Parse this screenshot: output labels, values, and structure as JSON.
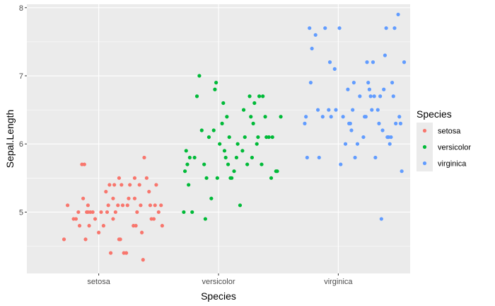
{
  "chart_data": {
    "type": "scatter",
    "xlabel": "Species",
    "ylabel": "Sepal.Length",
    "categories": [
      "setosa",
      "versicolor",
      "virginica"
    ],
    "ylim": [
      4.1,
      8.05
    ],
    "yticks": [
      5,
      6,
      7,
      8
    ],
    "grid": true,
    "legend": {
      "title": "Species",
      "position": "right"
    },
    "colors": {
      "setosa": "#F8766D",
      "versicolor": "#00BA38",
      "virginica": "#619CFF"
    },
    "series": [
      {
        "name": "setosa",
        "points": [
          [
            0.71,
            4.6
          ],
          [
            0.74,
            5.1
          ],
          [
            0.79,
            4.9
          ],
          [
            0.81,
            4.9
          ],
          [
            0.83,
            5.0
          ],
          [
            0.84,
            4.8
          ],
          [
            0.86,
            5.7
          ],
          [
            0.87,
            5.2
          ],
          [
            0.88,
            5.7
          ],
          [
            0.89,
            4.6
          ],
          [
            0.9,
            5.0
          ],
          [
            0.91,
            5.0
          ],
          [
            0.91,
            5.1
          ],
          [
            0.92,
            4.8
          ],
          [
            0.93,
            5.0
          ],
          [
            0.95,
            5.0
          ],
          [
            0.97,
            4.9
          ],
          [
            1.0,
            4.7
          ],
          [
            1.02,
            5.0
          ],
          [
            1.04,
            4.8
          ],
          [
            1.06,
            5.3
          ],
          [
            1.07,
            5.0
          ],
          [
            1.08,
            5.1
          ],
          [
            1.09,
            5.4
          ],
          [
            1.1,
            4.4
          ],
          [
            1.12,
            4.9
          ],
          [
            1.12,
            5.2
          ],
          [
            1.13,
            5.4
          ],
          [
            1.14,
            5.0
          ],
          [
            1.16,
            5.1
          ],
          [
            1.17,
            5.5
          ],
          [
            1.17,
            4.6
          ],
          [
            1.18,
            4.6
          ],
          [
            1.19,
            5.4
          ],
          [
            1.2,
            5.1
          ],
          [
            1.21,
            4.4
          ],
          [
            1.23,
            4.4
          ],
          [
            1.24,
            5.1
          ],
          [
            1.25,
            5.2
          ],
          [
            1.26,
            5.4
          ],
          [
            1.29,
            4.8
          ],
          [
            1.3,
            5.5
          ],
          [
            1.3,
            5.2
          ],
          [
            1.31,
            4.8
          ],
          [
            1.32,
            5.0
          ],
          [
            1.34,
            5.4
          ],
          [
            1.35,
            5.1
          ],
          [
            1.36,
            4.7
          ],
          [
            1.37,
            4.3
          ],
          [
            1.38,
            5.8
          ],
          [
            1.4,
            5.5
          ],
          [
            1.42,
            5.3
          ],
          [
            1.43,
            5.1
          ],
          [
            1.44,
            4.9
          ],
          [
            1.46,
            4.9
          ],
          [
            1.47,
            5.1
          ],
          [
            1.48,
            5.4
          ],
          [
            1.5,
            5.0
          ],
          [
            1.52,
            5.1
          ],
          [
            1.53,
            4.8
          ]
        ]
      },
      {
        "name": "versicolor",
        "points": [
          [
            1.71,
            5.0
          ],
          [
            1.72,
            5.6
          ],
          [
            1.73,
            5.9
          ],
          [
            1.74,
            5.7
          ],
          [
            1.75,
            5.4
          ],
          [
            1.76,
            5.8
          ],
          [
            1.78,
            5.0
          ],
          [
            1.8,
            5.8
          ],
          [
            1.82,
            6.7
          ],
          [
            1.84,
            7.0
          ],
          [
            1.86,
            6.2
          ],
          [
            1.88,
            5.7
          ],
          [
            1.89,
            4.9
          ],
          [
            1.9,
            5.5
          ],
          [
            1.92,
            6.1
          ],
          [
            1.94,
            5.2
          ],
          [
            1.96,
            6.2
          ],
          [
            1.97,
            6.8
          ],
          [
            1.98,
            6.9
          ],
          [
            1.99,
            5.5
          ],
          [
            2.01,
            6.0
          ],
          [
            2.03,
            6.3
          ],
          [
            2.04,
            6.6
          ],
          [
            2.05,
            5.9
          ],
          [
            2.06,
            5.8
          ],
          [
            2.07,
            6.4
          ],
          [
            2.08,
            5.7
          ],
          [
            2.09,
            6.1
          ],
          [
            2.1,
            5.5
          ],
          [
            2.11,
            5.5
          ],
          [
            2.13,
            5.6
          ],
          [
            2.15,
            5.8
          ],
          [
            2.16,
            6.0
          ],
          [
            2.18,
            5.1
          ],
          [
            2.2,
            5.9
          ],
          [
            2.21,
            6.5
          ],
          [
            2.22,
            6.1
          ],
          [
            2.24,
            5.7
          ],
          [
            2.26,
            6.7
          ],
          [
            2.27,
            6.4
          ],
          [
            2.28,
            5.8
          ],
          [
            2.29,
            6.3
          ],
          [
            2.3,
            6.6
          ],
          [
            2.32,
            6.0
          ],
          [
            2.33,
            6.1
          ],
          [
            2.34,
            6.7
          ],
          [
            2.36,
            5.7
          ],
          [
            2.37,
            6.7
          ],
          [
            2.39,
            6.4
          ],
          [
            2.4,
            6.1
          ],
          [
            2.42,
            6.1
          ],
          [
            2.44,
            5.5
          ],
          [
            2.45,
            6.1
          ],
          [
            2.48,
            5.6
          ],
          [
            2.49,
            5.6
          ],
          [
            2.52,
            6.4
          ]
        ]
      },
      {
        "name": "virginica",
        "points": [
          [
            2.72,
            6.3
          ],
          [
            2.73,
            6.4
          ],
          [
            2.74,
            5.8
          ],
          [
            2.76,
            7.7
          ],
          [
            2.77,
            6.9
          ],
          [
            2.78,
            7.4
          ],
          [
            2.81,
            7.6
          ],
          [
            2.83,
            6.5
          ],
          [
            2.84,
            5.8
          ],
          [
            2.87,
            6.4
          ],
          [
            2.89,
            7.7
          ],
          [
            2.92,
            6.5
          ],
          [
            2.93,
            7.2
          ],
          [
            2.94,
            6.4
          ],
          [
            2.97,
            7.1
          ],
          [
            2.98,
            6.5
          ],
          [
            3.01,
            7.7
          ],
          [
            3.02,
            5.7
          ],
          [
            3.04,
            6.4
          ],
          [
            3.06,
            6.0
          ],
          [
            3.08,
            6.8
          ],
          [
            3.09,
            6.3
          ],
          [
            3.1,
            6.3
          ],
          [
            3.11,
            6.2
          ],
          [
            3.12,
            6.5
          ],
          [
            3.13,
            6.9
          ],
          [
            3.14,
            5.8
          ],
          [
            3.16,
            6.0
          ],
          [
            3.18,
            6.7
          ],
          [
            3.21,
            6.1
          ],
          [
            3.22,
            6.4
          ],
          [
            3.23,
            6.4
          ],
          [
            3.24,
            7.2
          ],
          [
            3.25,
            6.9
          ],
          [
            3.26,
            6.8
          ],
          [
            3.27,
            6.7
          ],
          [
            3.28,
            6.5
          ],
          [
            3.29,
            7.2
          ],
          [
            3.3,
            6.7
          ],
          [
            3.31,
            5.8
          ],
          [
            3.33,
            6.5
          ],
          [
            3.34,
            6.3
          ],
          [
            3.35,
            6.7
          ],
          [
            3.36,
            4.9
          ],
          [
            3.37,
            6.2
          ],
          [
            3.38,
            6.8
          ],
          [
            3.39,
            7.3
          ],
          [
            3.4,
            7.7
          ],
          [
            3.41,
            6.1
          ],
          [
            3.42,
            6.1
          ],
          [
            3.43,
            6.0
          ],
          [
            3.44,
            6.1
          ],
          [
            3.45,
            6.9
          ],
          [
            3.46,
            6.7
          ],
          [
            3.47,
            7.7
          ],
          [
            3.48,
            6.3
          ],
          [
            3.5,
            7.9
          ],
          [
            3.51,
            6.4
          ],
          [
            3.52,
            6.3
          ],
          [
            3.53,
            5.6
          ],
          [
            3.55,
            7.2
          ]
        ]
      }
    ]
  }
}
